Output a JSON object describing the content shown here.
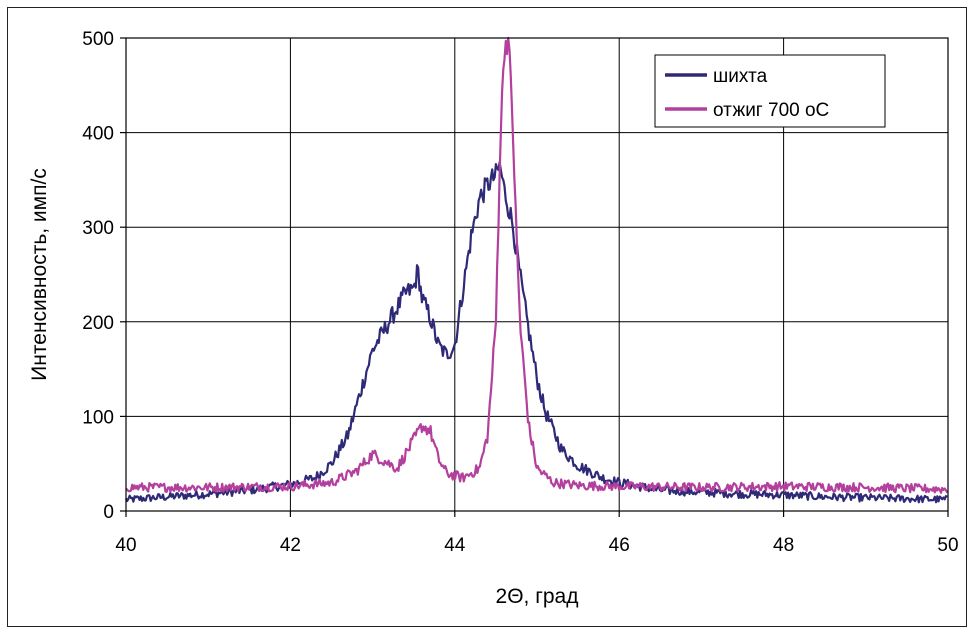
{
  "chart_data": {
    "type": "line",
    "xlabel": "2Θ, град",
    "ylabel": "Интенсивность, имп/с",
    "xlim": [
      40,
      50
    ],
    "ylim": [
      0,
      500
    ],
    "xticks": [
      "40",
      "42",
      "44",
      "46",
      "48",
      "50"
    ],
    "yticks": [
      "0",
      "100",
      "200",
      "300",
      "400",
      "500"
    ],
    "grid": true,
    "legend_position": "top-right",
    "series": [
      {
        "name": "шихта",
        "color": "#2e2a78",
        "x": [
          40.0,
          40.5,
          41.0,
          41.5,
          42.0,
          42.3,
          42.5,
          42.7,
          42.9,
          43.0,
          43.2,
          43.4,
          43.5,
          43.55,
          43.6,
          43.7,
          43.8,
          43.9,
          44.0,
          44.1,
          44.2,
          44.3,
          44.4,
          44.5,
          44.55,
          44.6,
          44.7,
          44.8,
          44.9,
          45.0,
          45.1,
          45.2,
          45.3,
          45.5,
          45.8,
          46.0,
          46.5,
          47.0,
          47.5,
          48.0,
          48.5,
          49.0,
          49.5,
          50.0
        ],
        "y": [
          12,
          15,
          18,
          22,
          28,
          35,
          50,
          80,
          140,
          170,
          200,
          230,
          235,
          255,
          225,
          205,
          175,
          165,
          175,
          235,
          290,
          330,
          345,
          355,
          365,
          340,
          305,
          245,
          190,
          140,
          105,
          85,
          65,
          48,
          35,
          30,
          22,
          20,
          18,
          17,
          15,
          14,
          13,
          12
        ]
      },
      {
        "name": "отжиг 700 оС",
        "color": "#b3409d",
        "x": [
          40.0,
          41.0,
          42.0,
          42.5,
          42.8,
          43.0,
          43.1,
          43.3,
          43.5,
          43.6,
          43.7,
          43.8,
          43.9,
          44.1,
          44.3,
          44.4,
          44.5,
          44.55,
          44.6,
          44.65,
          44.7,
          44.75,
          44.8,
          44.9,
          45.0,
          45.2,
          45.5,
          46.0,
          47.0,
          48.0,
          49.0,
          50.0
        ],
        "y": [
          25,
          25,
          26,
          30,
          42,
          60,
          55,
          45,
          75,
          90,
          85,
          55,
          40,
          35,
          45,
          80,
          200,
          380,
          490,
          500,
          420,
          290,
          190,
          90,
          45,
          30,
          27,
          26,
          25,
          26,
          25,
          23
        ]
      }
    ]
  }
}
